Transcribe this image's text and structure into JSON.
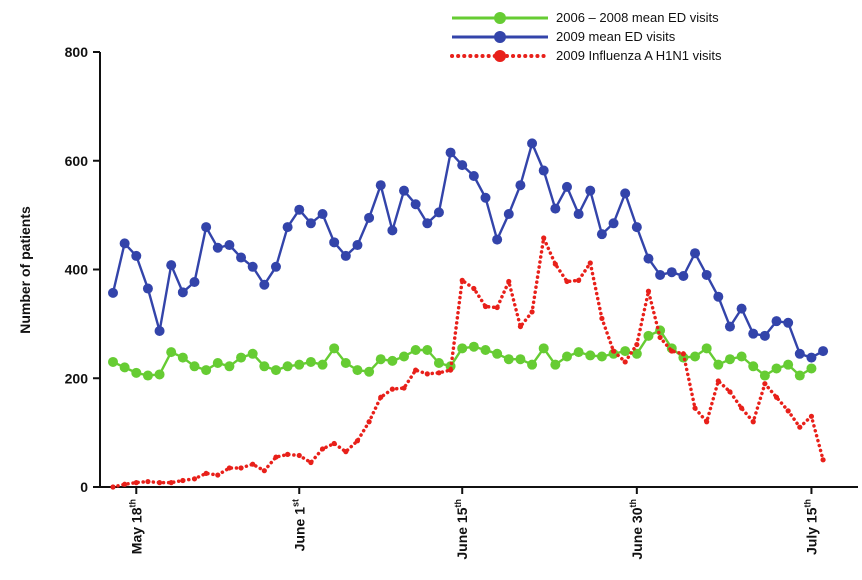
{
  "chart_data": {
    "type": "line",
    "title": "",
    "xlabel": "",
    "ylabel": "Number of patients",
    "ylim": [
      0,
      800
    ],
    "yticks": [
      0,
      200,
      400,
      600,
      800
    ],
    "xticks": [
      {
        "day": 2,
        "label": "May 18",
        "sup": "th"
      },
      {
        "day": 16,
        "label": "June 1",
        "sup": "st"
      },
      {
        "day": 30,
        "label": "June 15",
        "sup": "th"
      },
      {
        "day": 45,
        "label": "June 30",
        "sup": "th"
      },
      {
        "day": 60,
        "label": "July 15",
        "sup": "th"
      }
    ],
    "x": [
      0,
      1,
      2,
      3,
      4,
      5,
      6,
      7,
      8,
      9,
      10,
      11,
      12,
      13,
      14,
      15,
      16,
      17,
      18,
      19,
      20,
      21,
      22,
      23,
      24,
      25,
      26,
      27,
      28,
      29,
      30,
      31,
      32,
      33,
      34,
      35,
      36,
      37,
      38,
      39,
      40,
      41,
      42,
      43,
      44,
      45,
      46,
      47,
      48,
      49,
      50,
      51,
      52,
      53,
      54,
      55,
      56,
      57,
      58,
      59,
      60,
      61,
      62,
      63,
      64
    ],
    "grid": false,
    "legend_position": "top-right",
    "series": [
      {
        "name": "2006 – 2008 mean ED visits",
        "color": "#66cc33",
        "style": "solid",
        "values": [
          230,
          220,
          210,
          205,
          207,
          248,
          238,
          222,
          215,
          228,
          222,
          238,
          245,
          222,
          215,
          222,
          225,
          230,
          225,
          255,
          228,
          215,
          212,
          235,
          232,
          240,
          252,
          252,
          228,
          222,
          255,
          258,
          252,
          245,
          235,
          235,
          225,
          255,
          225,
          240,
          248,
          242,
          240,
          245,
          250,
          245,
          278,
          288,
          255,
          238,
          240,
          255,
          225,
          235,
          240,
          222,
          205,
          218,
          225,
          205,
          218,
          null,
          null,
          null,
          null
        ]
      },
      {
        "name": "2009 mean ED visits",
        "color": "#3344aa",
        "style": "solid",
        "values": [
          357,
          448,
          425,
          365,
          287,
          408,
          358,
          377,
          478,
          440,
          445,
          422,
          405,
          372,
          405,
          478,
          510,
          485,
          502,
          450,
          425,
          445,
          495,
          555,
          472,
          545,
          520,
          485,
          505,
          615,
          592,
          572,
          532,
          455,
          502,
          555,
          632,
          582,
          512,
          552,
          502,
          545,
          465,
          485,
          540,
          478,
          420,
          390,
          395,
          388,
          430,
          390,
          350,
          295,
          328,
          282,
          278,
          305,
          302,
          245,
          238,
          250,
          null,
          null,
          null
        ]
      },
      {
        "name": "2009 Influenza A H1N1 visits",
        "color": "#e8201a",
        "style": "dotted",
        "values": [
          0,
          5,
          8,
          10,
          8,
          8,
          12,
          15,
          25,
          22,
          35,
          35,
          42,
          30,
          55,
          60,
          58,
          45,
          70,
          80,
          65,
          85,
          120,
          165,
          180,
          182,
          215,
          208,
          210,
          215,
          380,
          365,
          332,
          330,
          378,
          295,
          322,
          458,
          410,
          378,
          380,
          412,
          310,
          250,
          230,
          262,
          360,
          275,
          250,
          245,
          145,
          120,
          195,
          175,
          145,
          120,
          190,
          165,
          140,
          110,
          130,
          50,
          null,
          null,
          null
        ]
      }
    ]
  }
}
